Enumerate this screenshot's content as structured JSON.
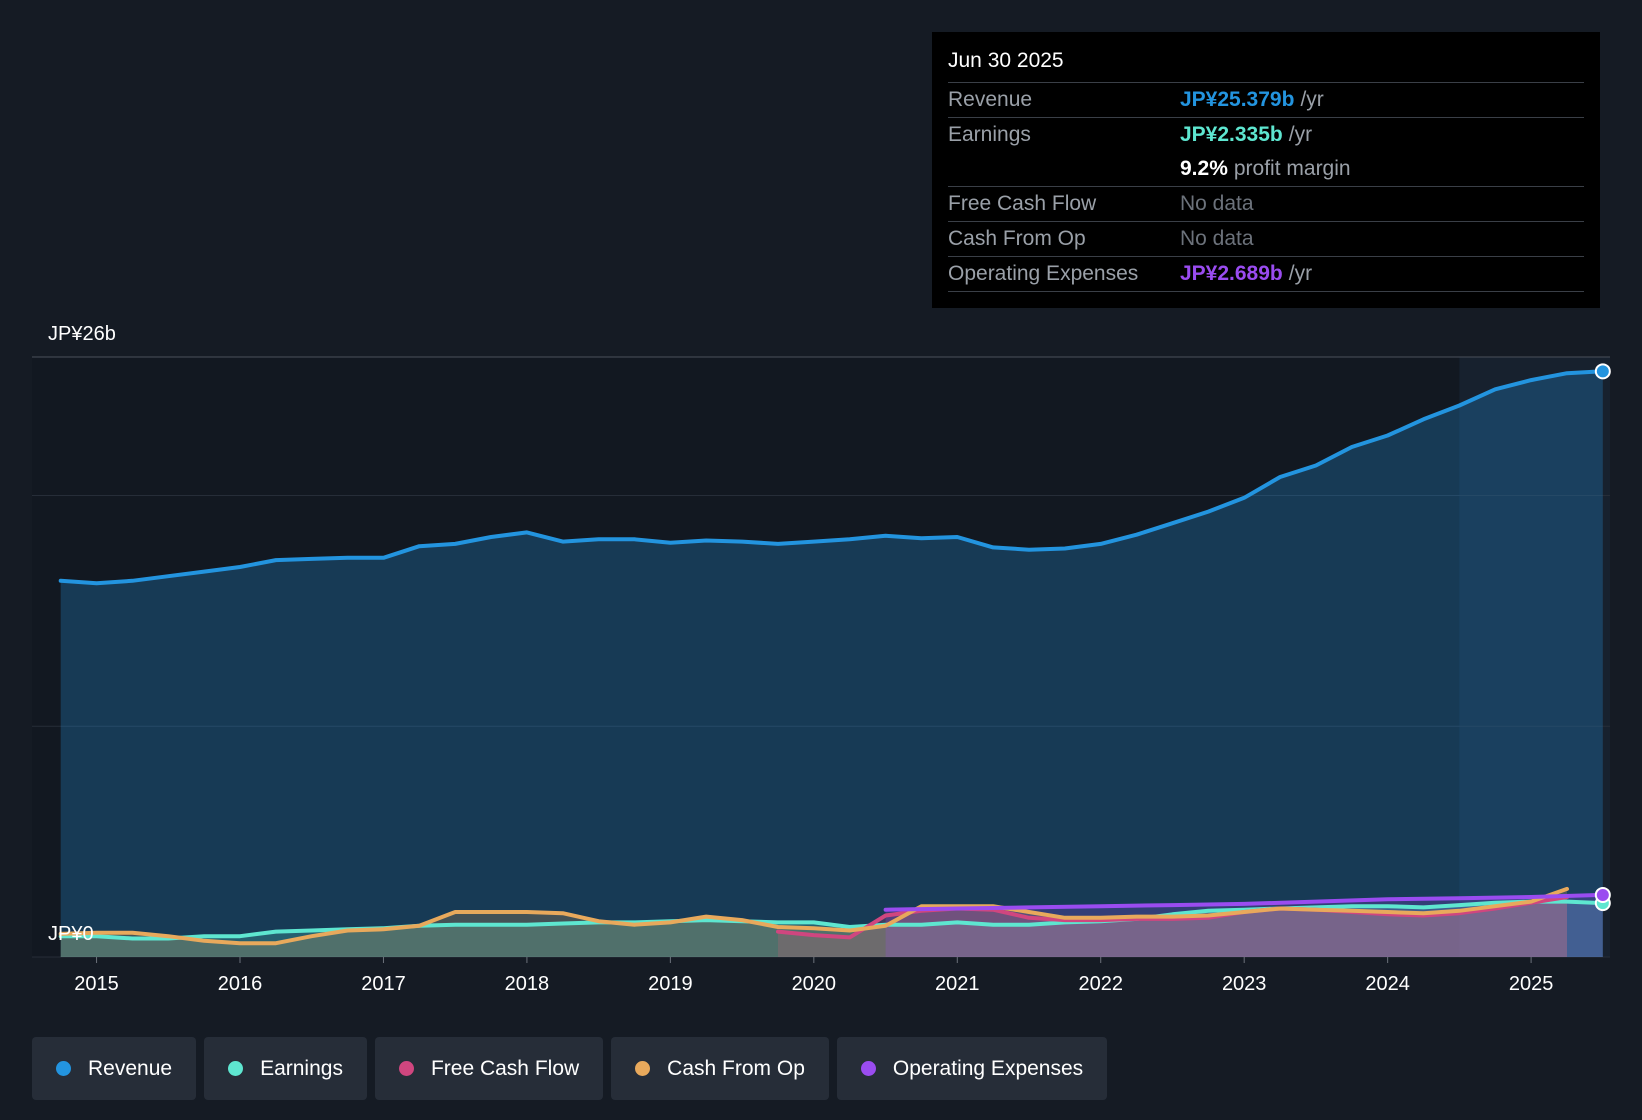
{
  "chart_data": {
    "type": "line",
    "y_axis": {
      "top_label": "JP¥26b",
      "bottom_label": "JP¥0",
      "ylim": [
        0,
        26
      ]
    },
    "x_ticks": [
      "2015",
      "2016",
      "2017",
      "2018",
      "2019",
      "2020",
      "2021",
      "2022",
      "2023",
      "2024",
      "2025"
    ],
    "xlim": [
      2014.55,
      2025.55
    ],
    "forecast_start": 2024.5,
    "series": [
      {
        "name": "Revenue",
        "color": "#2394df",
        "fill": true,
        "end_marker": true,
        "x": [
          2014.75,
          2015.0,
          2015.25,
          2015.5,
          2015.75,
          2016.0,
          2016.25,
          2016.5,
          2016.75,
          2017.0,
          2017.25,
          2017.5,
          2017.75,
          2018.0,
          2018.25,
          2018.5,
          2018.75,
          2019.0,
          2019.25,
          2019.5,
          2019.75,
          2020.0,
          2020.25,
          2020.5,
          2020.75,
          2021.0,
          2021.25,
          2021.5,
          2021.75,
          2022.0,
          2022.25,
          2022.5,
          2022.75,
          2023.0,
          2023.25,
          2023.5,
          2023.75,
          2024.0,
          2024.25,
          2024.5,
          2024.75,
          2025.0,
          2025.25,
          2025.5
        ],
        "values": [
          16.3,
          16.2,
          16.3,
          16.5,
          16.7,
          16.9,
          17.2,
          17.25,
          17.3,
          17.3,
          17.8,
          17.9,
          18.2,
          18.4,
          18.0,
          18.1,
          18.1,
          17.95,
          18.05,
          18.0,
          17.9,
          18.0,
          18.1,
          18.25,
          18.15,
          18.2,
          17.75,
          17.65,
          17.7,
          17.9,
          18.3,
          18.8,
          19.3,
          19.9,
          20.8,
          21.3,
          22.1,
          22.6,
          23.3,
          23.9,
          24.6,
          25.0,
          25.3,
          25.379
        ]
      },
      {
        "name": "Earnings",
        "color": "#5ee6d0",
        "fill": true,
        "end_marker": true,
        "x": [
          2014.75,
          2015.0,
          2015.25,
          2015.5,
          2015.75,
          2016.0,
          2016.25,
          2016.5,
          2016.75,
          2017.0,
          2017.25,
          2017.5,
          2017.75,
          2018.0,
          2018.25,
          2018.5,
          2018.75,
          2019.0,
          2019.25,
          2019.5,
          2019.75,
          2020.0,
          2020.25,
          2020.5,
          2020.75,
          2021.0,
          2021.25,
          2021.5,
          2021.75,
          2022.0,
          2022.25,
          2022.5,
          2022.75,
          2023.0,
          2023.25,
          2023.5,
          2023.75,
          2024.0,
          2024.25,
          2024.5,
          2024.75,
          2025.0,
          2025.25,
          2025.5
        ],
        "values": [
          0.9,
          0.9,
          0.8,
          0.8,
          0.9,
          0.9,
          1.1,
          1.15,
          1.2,
          1.25,
          1.35,
          1.4,
          1.4,
          1.4,
          1.45,
          1.5,
          1.5,
          1.55,
          1.6,
          1.55,
          1.5,
          1.5,
          1.3,
          1.4,
          1.4,
          1.5,
          1.4,
          1.4,
          1.5,
          1.55,
          1.65,
          1.85,
          2.0,
          2.05,
          2.1,
          2.15,
          2.2,
          2.2,
          2.15,
          2.25,
          2.35,
          2.4,
          2.4,
          2.335
        ]
      },
      {
        "name": "Free Cash Flow",
        "color": "#d0467f",
        "fill": true,
        "end_marker": false,
        "x": [
          2019.75,
          2020.0,
          2020.25,
          2020.5,
          2020.75,
          2021.0,
          2021.25,
          2021.5,
          2021.75,
          2022.0,
          2022.25,
          2022.5,
          2022.75,
          2023.0,
          2023.25,
          2023.5,
          2023.75,
          2024.0,
          2024.25,
          2024.5,
          2024.75,
          2025.0,
          2025.25
        ],
        "values": [
          1.1,
          0.95,
          0.85,
          1.8,
          2.0,
          2.1,
          2.05,
          1.7,
          1.6,
          1.6,
          1.65,
          1.65,
          1.7,
          1.95,
          2.1,
          2.05,
          1.95,
          1.85,
          1.8,
          1.9,
          2.1,
          2.35,
          2.6
        ]
      },
      {
        "name": "Cash From Op",
        "color": "#e8a95c",
        "fill": true,
        "end_marker": false,
        "x": [
          2014.75,
          2015.0,
          2015.25,
          2015.5,
          2015.75,
          2016.0,
          2016.25,
          2016.5,
          2016.75,
          2017.0,
          2017.25,
          2017.5,
          2017.75,
          2018.0,
          2018.25,
          2018.5,
          2018.75,
          2019.0,
          2019.25,
          2019.5,
          2019.75,
          2020.0,
          2020.25,
          2020.5,
          2020.75,
          2021.0,
          2021.25,
          2021.5,
          2021.75,
          2022.0,
          2022.25,
          2022.5,
          2022.75,
          2023.0,
          2023.25,
          2023.5,
          2023.75,
          2024.0,
          2024.25,
          2024.5,
          2024.75,
          2025.0,
          2025.25
        ],
        "values": [
          1.0,
          1.05,
          1.05,
          0.9,
          0.7,
          0.6,
          0.6,
          0.9,
          1.15,
          1.2,
          1.35,
          1.95,
          1.95,
          1.95,
          1.9,
          1.55,
          1.4,
          1.5,
          1.75,
          1.6,
          1.3,
          1.25,
          1.15,
          1.35,
          2.2,
          2.2,
          2.2,
          1.95,
          1.7,
          1.7,
          1.75,
          1.75,
          1.8,
          1.95,
          2.1,
          2.05,
          2.0,
          1.95,
          1.9,
          2.0,
          2.2,
          2.4,
          2.95
        ]
      },
      {
        "name": "Operating Expenses",
        "color": "#9a4cf0",
        "fill": true,
        "end_marker": true,
        "x": [
          2020.5,
          2021.0,
          2021.5,
          2022.0,
          2022.5,
          2023.0,
          2023.5,
          2024.0,
          2024.5,
          2025.0,
          2025.5
        ],
        "values": [
          2.05,
          2.1,
          2.15,
          2.2,
          2.25,
          2.3,
          2.4,
          2.5,
          2.55,
          2.6,
          2.689
        ]
      }
    ]
  },
  "tooltip": {
    "date": "Jun 30 2025",
    "rows": [
      {
        "label": "Revenue",
        "value": "JP¥25.379b",
        "unit": "/yr",
        "color": "#2394df",
        "bordered": true
      },
      {
        "label": "Earnings",
        "value": "JP¥2.335b",
        "unit": "/yr",
        "color": "#5ee6d0",
        "bordered": false
      },
      {
        "label": "",
        "value": "9.2%",
        "unit": "profit margin",
        "color": "#ffffff",
        "bordered": true
      },
      {
        "label": "Free Cash Flow",
        "value": "No data",
        "unit": "",
        "color": "",
        "bordered": true,
        "nodata": true
      },
      {
        "label": "Cash From Op",
        "value": "No data",
        "unit": "",
        "color": "",
        "bordered": true,
        "nodata": true
      },
      {
        "label": "Operating Expenses",
        "value": "JP¥2.689b",
        "unit": "/yr",
        "color": "#9a4cf0",
        "bordered": true
      }
    ]
  },
  "legend": [
    {
      "label": "Revenue",
      "color": "#2394df"
    },
    {
      "label": "Earnings",
      "color": "#5ee6d0"
    },
    {
      "label": "Free Cash Flow",
      "color": "#d0467f"
    },
    {
      "label": "Cash From Op",
      "color": "#e8a95c"
    },
    {
      "label": "Operating Expenses",
      "color": "#9a4cf0"
    }
  ]
}
